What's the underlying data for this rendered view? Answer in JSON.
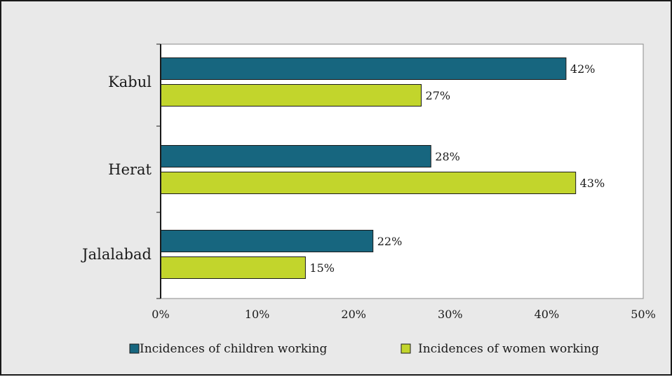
{
  "chart_data": {
    "type": "bar",
    "orientation": "horizontal",
    "categories": [
      "Kabul",
      "Herat",
      "Jalalabad"
    ],
    "series": [
      {
        "name": "Incidences of children working",
        "values": [
          42,
          28,
          22
        ],
        "color": "#17667f"
      },
      {
        "name": "Incidences of women working",
        "values": [
          27,
          43,
          15
        ],
        "color": "#c2d52c"
      }
    ],
    "value_labels": [
      [
        "42%",
        "28%",
        "22%"
      ],
      [
        "27%",
        "43%",
        "15%"
      ]
    ],
    "xlim": [
      0,
      50
    ],
    "x_ticks": [
      0,
      10,
      20,
      30,
      40,
      50
    ],
    "x_tick_labels": [
      "0%",
      "10%",
      "20%",
      "30%",
      "40%",
      "50%"
    ],
    "grid": false,
    "legend_position": "bottom"
  },
  "colors": {
    "background": "#e9e9e9",
    "plot_background": "#ffffff",
    "text": "#1a1a1a"
  }
}
